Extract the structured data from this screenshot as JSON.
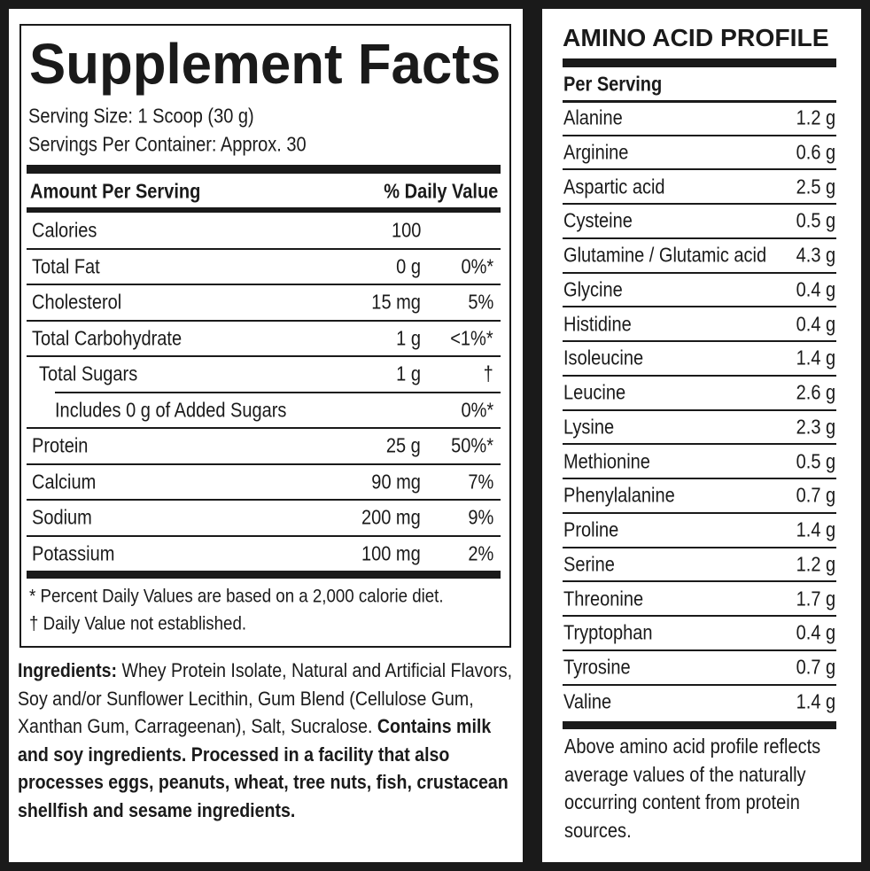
{
  "supplement_facts": {
    "title": "Supplement Facts",
    "serving_size": "Serving Size: 1 Scoop (30 g)",
    "servings_per_container": "Servings Per Container: Approx. 30",
    "header": {
      "amount": "Amount Per Serving",
      "daily_value": "% Daily Value"
    },
    "rows": [
      {
        "name": "Calories",
        "amount": "100"
      },
      {
        "name": "Total Fat",
        "amount": "0 g",
        "daily_value": "0%*"
      },
      {
        "name": "Cholesterol",
        "amount": "15 mg",
        "daily_value": "5%"
      },
      {
        "name": "Total Carbohydrate",
        "amount": "1 g",
        "daily_value": "<1%*"
      },
      {
        "name": "Total Sugars",
        "amount": "1 g",
        "daily_value": "†"
      },
      {
        "name": "Includes 0 g of Added Sugars",
        "daily_value": "0%*"
      },
      {
        "name": "Protein",
        "amount": "25 g",
        "daily_value": "50%*"
      },
      {
        "name": "Calcium",
        "amount": "90 mg",
        "daily_value": "7%"
      },
      {
        "name": "Sodium",
        "amount": "200 mg",
        "daily_value": "9%"
      },
      {
        "name": "Potassium",
        "amount": "100 mg",
        "daily_value": "2%"
      }
    ],
    "footnotes": [
      "* Percent Daily Values are based on a 2,000 calorie diet.",
      "† Daily Value not established."
    ]
  },
  "ingredients": [
    {
      "text": "Ingredients:",
      "bold": true
    },
    {
      "text": "Whey Protein Isolate, Natural and Artificial Flavors, Soy and/or Sunflower Lecithin, Gum Blend (Cellulose Gum, Xanthan Gum, Carrageenan), Salt, Sucralose.",
      "bold": false
    },
    {
      "text": "Contains milk and soy ingredients. Processed in a facility that also processes eggs, peanuts, wheat, tree nuts, fish, crustacean shellfish and sesame ingredients.",
      "bold": true
    }
  ],
  "amino_acid_profile": {
    "title": "AMINO ACID PROFILE",
    "subheader": "Per Serving",
    "rows": [
      {
        "name": "Alanine",
        "amount": "1.2 g"
      },
      {
        "name": "Arginine",
        "amount": "0.6 g"
      },
      {
        "name": "Aspartic acid",
        "amount": "2.5 g"
      },
      {
        "name": "Cysteine",
        "amount": "0.5 g"
      },
      {
        "name": "Glutamine / Glutamic acid",
        "amount": "4.3 g"
      },
      {
        "name": "Glycine",
        "amount": "0.4 g"
      },
      {
        "name": "Histidine",
        "amount": "0.4 g"
      },
      {
        "name": "Isoleucine",
        "amount": "1.4 g"
      },
      {
        "name": "Leucine",
        "amount": "2.6 g"
      },
      {
        "name": "Lysine",
        "amount": "2.3 g"
      },
      {
        "name": "Methionine",
        "amount": "0.5 g"
      },
      {
        "name": "Phenylalanine",
        "amount": "0.7 g"
      },
      {
        "name": "Proline",
        "amount": "1.4 g"
      },
      {
        "name": "Serine",
        "amount": "1.2 g"
      },
      {
        "name": "Threonine",
        "amount": "1.7 g"
      },
      {
        "name": "Tryptophan",
        "amount": "0.4 g"
      },
      {
        "name": "Tyrosine",
        "amount": "0.7 g"
      },
      {
        "name": "Valine",
        "amount": "1.4 g"
      }
    ],
    "note": "Above amino acid profile reflects average values of the naturally occurring content from protein sources."
  }
}
